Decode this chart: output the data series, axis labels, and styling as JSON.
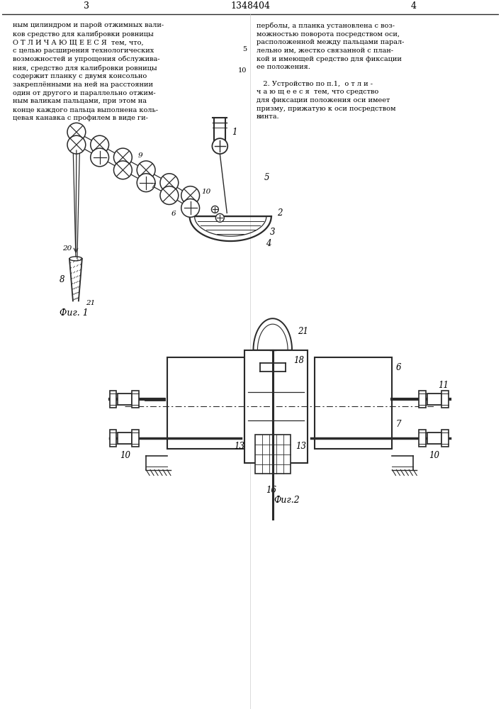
{
  "page_number_left": "3",
  "page_number_center": "1348404",
  "page_number_right": "4",
  "text_left": "ным цилиндром и парой отжимных вали-\nков средство для калибровки ровницы\nО Т Л И Ч А Ю Щ Е Е С Я  тем, что,\nс целью расширения технологических\nвозможностей и упрощения обслужива-\nния, средство для калибровки ровницы\nсодержит планку с двумя консольно\nзакреплёнными на ней на расстоянии\nодин от другого и параллельно отжим-\nным валикам пальцами, при этом на\nконце каждого пальца выполнена коль-\nцевая канавка с профилем в виде ги-",
  "text_right": "перболы, а планка установлена с воз-\nможностью поворота посредством оси,\nрасположенной между пальцами парал-\nлельно им, жестко связанной с план-\nкой и имеющей средство для фиксации\nее положения.\n\n   2. Устройство по п.1,  о т л и -\nч а ю щ е е с я  тем, что средство\nдля фиксации положения оси имеет\nпризму, прижатую к оси посредством\nвинта.",
  "line_number_5": "5",
  "line_number_10": "10",
  "fig1_label": "Фиг. 1",
  "fig2_label": "Фиг.2",
  "bg_color": "#ffffff",
  "fg_color": "#000000",
  "line_color": "#2a2a2a"
}
